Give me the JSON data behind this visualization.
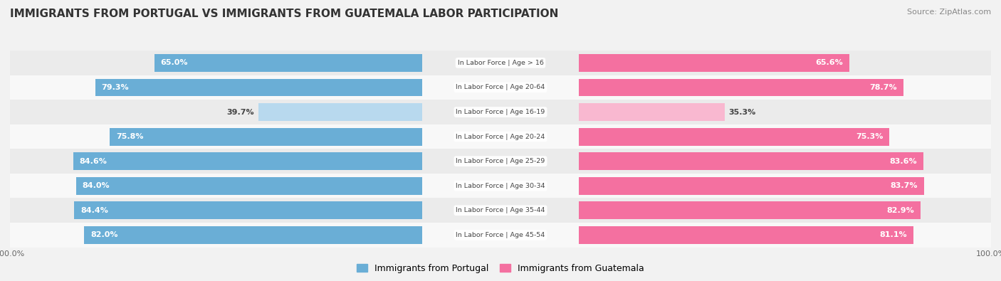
{
  "title": "IMMIGRANTS FROM PORTUGAL VS IMMIGRANTS FROM GUATEMALA LABOR PARTICIPATION",
  "source": "Source: ZipAtlas.com",
  "categories": [
    "In Labor Force | Age > 16",
    "In Labor Force | Age 20-64",
    "In Labor Force | Age 16-19",
    "In Labor Force | Age 20-24",
    "In Labor Force | Age 25-29",
    "In Labor Force | Age 30-34",
    "In Labor Force | Age 35-44",
    "In Labor Force | Age 45-54"
  ],
  "portugal_values": [
    65.0,
    79.3,
    39.7,
    75.8,
    84.6,
    84.0,
    84.4,
    82.0
  ],
  "guatemala_values": [
    65.6,
    78.7,
    35.3,
    75.3,
    83.6,
    83.7,
    82.9,
    81.1
  ],
  "portugal_color": "#6aaed6",
  "portugal_color_light": "#b8d9ee",
  "guatemala_color": "#f470a0",
  "guatemala_color_light": "#f9b8d0",
  "bar_height": 0.72,
  "xlim_left": [
    -100,
    0
  ],
  "xlim_right": [
    0,
    100
  ],
  "legend_label_portugal": "Immigrants from Portugal",
  "legend_label_guatemala": "Immigrants from Guatemala",
  "background_color": "#f2f2f2",
  "row_bg_colors": [
    "#ebebeb",
    "#f8f8f8"
  ],
  "title_fontsize": 11,
  "label_fontsize": 8,
  "value_fontsize": 8
}
